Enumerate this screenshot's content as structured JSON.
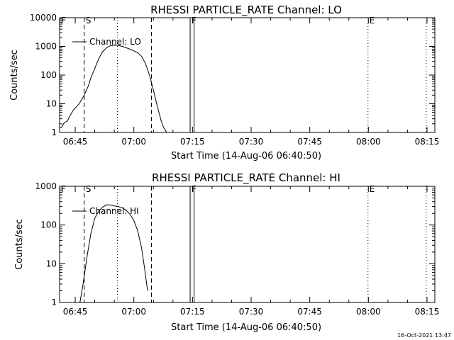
{
  "timestamp": "16-Oct-2021 13:47",
  "chart_data": [
    {
      "type": "line",
      "title": "RHESSI PARTICLE_RATE Channel: LO",
      "xlabel": "Start Time (14-Aug-06 06:40:50)",
      "ylabel": "Counts/sec",
      "x_tick_labels": [
        "06:45",
        "07:00",
        "07:15",
        "07:30",
        "07:45",
        "08:00",
        "08:15"
      ],
      "x_ticks_min": [
        405,
        420,
        435,
        450,
        465,
        480,
        495
      ],
      "xlim_min": [
        401,
        497
      ],
      "y_tick_labels": [
        "1",
        "10",
        "100",
        "1000",
        "10000"
      ],
      "y_ticks": [
        1,
        10,
        100,
        1000,
        10000
      ],
      "ylim": [
        1,
        10000
      ],
      "yscale": "log",
      "grid": false,
      "legend": "top-left",
      "series": [
        {
          "name": "Channel: LO",
          "x_min": [
            401.0,
            401.5,
            402.2,
            403.0,
            403.5,
            404.5,
            406.0,
            407.3,
            408.3,
            409.0,
            410.0,
            411.0,
            412.0,
            413.0,
            414.0,
            415.0,
            416.0,
            417.0,
            418.0,
            419.0,
            420.0,
            421.0,
            422.0,
            423.0,
            424.0,
            425.0,
            426.0,
            427.0,
            427.6,
            428.4
          ],
          "y": [
            1.5,
            1.5,
            2.2,
            2.5,
            3.5,
            6.0,
            10.0,
            20.0,
            40.0,
            80.0,
            170,
            370,
            650,
            900,
            1050,
            1100,
            1080,
            1000,
            900,
            800,
            700,
            600,
            450,
            250,
            100,
            30,
            8,
            2.5,
            1.5,
            1.0
          ]
        }
      ],
      "markers": [
        {
          "label": "F",
          "x_min": 401,
          "style": "dotted"
        },
        {
          "label": "S",
          "x_min": 407.3,
          "style": "dashed"
        },
        {
          "label": "",
          "x_min": 415.8,
          "style": "dotted"
        },
        {
          "label": "",
          "x_min": 424.5,
          "style": "dashed"
        },
        {
          "label": "F",
          "x_min": 434.4,
          "style": "solid"
        },
        {
          "label": "",
          "x_min": 435.4,
          "style": "solid"
        },
        {
          "label": "E",
          "x_min": 479.9,
          "style": "dotted"
        },
        {
          "label": "",
          "x_min": 494.8,
          "style": "dotted"
        }
      ]
    },
    {
      "type": "line",
      "title": "RHESSI PARTICLE_RATE Channel: HI",
      "xlabel": "Start Time (14-Aug-06 06:40:50)",
      "ylabel": "Counts/sec",
      "x_tick_labels": [
        "06:45",
        "07:00",
        "07:15",
        "07:30",
        "07:45",
        "08:00",
        "08:15"
      ],
      "x_ticks_min": [
        405,
        420,
        435,
        450,
        465,
        480,
        495
      ],
      "xlim_min": [
        401,
        497
      ],
      "y_tick_labels": [
        "1",
        "10",
        "100",
        "1000"
      ],
      "y_ticks": [
        1,
        10,
        100,
        1000
      ],
      "ylim": [
        1,
        1000
      ],
      "yscale": "log",
      "grid": false,
      "legend": "top-left",
      "series": [
        {
          "name": "Channel: HI",
          "x_min": [
            406.2,
            407.0,
            408.0,
            409.0,
            410.0,
            411.0,
            412.0,
            413.0,
            414.0,
            415.0,
            416.0,
            417.0,
            418.0,
            419.0,
            420.0,
            421.0,
            422.0,
            422.8,
            423.5
          ],
          "y": [
            1.0,
            3.0,
            15.0,
            60.0,
            150,
            230,
            290,
            330,
            330,
            310,
            300,
            280,
            240,
            190,
            130,
            70,
            25,
            7,
            2.0
          ]
        }
      ],
      "markers": [
        {
          "label": "F",
          "x_min": 401,
          "style": "dotted"
        },
        {
          "label": "S",
          "x_min": 407.3,
          "style": "dashed"
        },
        {
          "label": "",
          "x_min": 415.8,
          "style": "dotted"
        },
        {
          "label": "",
          "x_min": 424.5,
          "style": "dashed"
        },
        {
          "label": "F",
          "x_min": 434.4,
          "style": "solid"
        },
        {
          "label": "",
          "x_min": 435.4,
          "style": "solid"
        },
        {
          "label": "E",
          "x_min": 479.9,
          "style": "dotted"
        },
        {
          "label": "",
          "x_min": 494.8,
          "style": "dotted"
        }
      ]
    }
  ]
}
